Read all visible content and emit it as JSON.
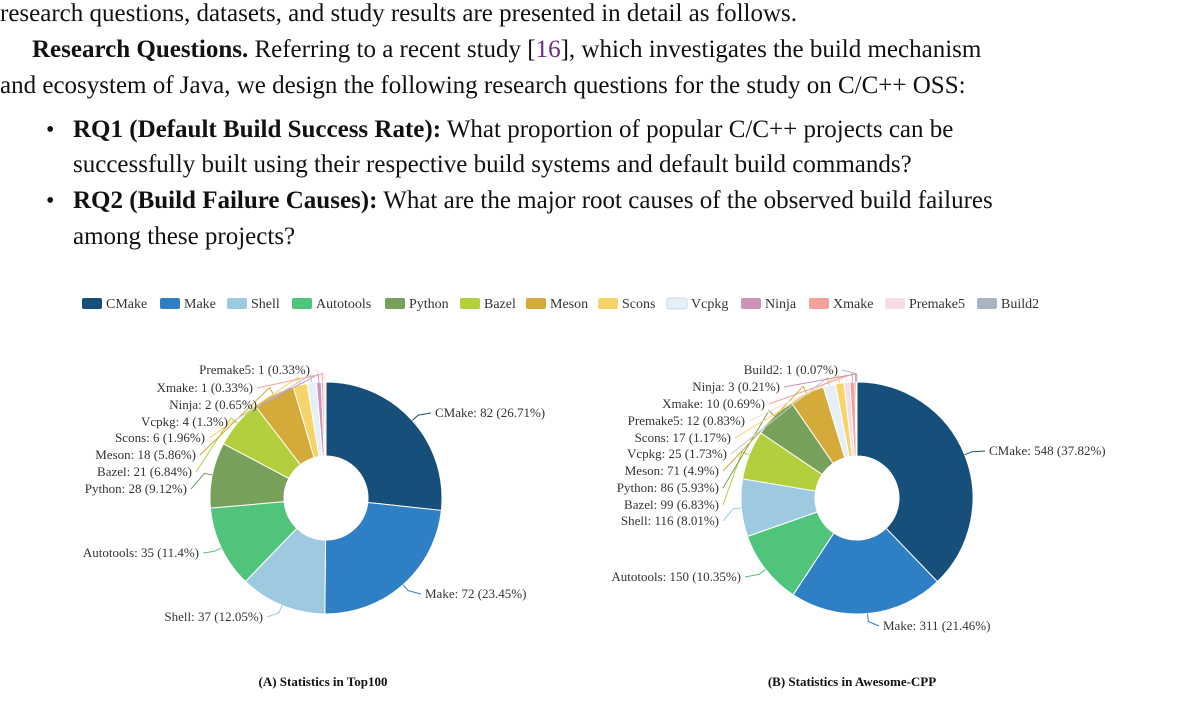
{
  "text": {
    "line1": "research questions, datasets, and study results are presented in detail as follows.",
    "rq_head": "Research Questions.",
    "rq_text_a": " Referring to a recent study [",
    "rq_cite": "16",
    "rq_text_b": "], which investigates the build mechanism",
    "rq_line2": "and ecosystem of Java, we design the following research questions for the study on C/C++ OSS:",
    "rq1_head": "RQ1 (Default Build Success Rate):",
    "rq1_text": " What proportion of popular C/C++ projects can be",
    "rq1_line2": "successfully built using their respective build systems and default build commands?",
    "rq2_head": "RQ2 (Build Failure Causes):",
    "rq2_text": " What are the major root causes of the observed build failures",
    "rq2_line2": "among these projects?"
  },
  "legend": [
    {
      "name": "CMake",
      "color": "#154f7a"
    },
    {
      "name": "Make",
      "color": "#2f7fc4"
    },
    {
      "name": "Shell",
      "color": "#9ecae1"
    },
    {
      "name": "Autotools",
      "color": "#4fc47a"
    },
    {
      "name": "Python",
      "color": "#77a05a"
    },
    {
      "name": "Bazel",
      "color": "#b3cf3e"
    },
    {
      "name": "Meson",
      "color": "#d4aa3a"
    },
    {
      "name": "Scons",
      "color": "#f5d46a"
    },
    {
      "name": "Vcpkg",
      "color": "#e6eef6"
    },
    {
      "name": "Ninja",
      "color": "#c994b8"
    },
    {
      "name": "Xmake",
      "color": "#f4a19a"
    },
    {
      "name": "Premake5",
      "color": "#f6dde2"
    },
    {
      "name": "Build2",
      "color": "#a9b4c2"
    }
  ],
  "chart_data": [
    {
      "type": "pie",
      "title": "(A) Statistics in Top100",
      "slices": [
        {
          "name": "CMake",
          "value": 82,
          "pct": "26.71%",
          "label": "CMake: 82 (26.71%)"
        },
        {
          "name": "Make",
          "value": 72,
          "pct": "23.45%",
          "label": "Make: 72 (23.45%)"
        },
        {
          "name": "Shell",
          "value": 37,
          "pct": "12.05%",
          "label": "Shell: 37 (12.05%)"
        },
        {
          "name": "Autotools",
          "value": 35,
          "pct": "11.4%",
          "label": "Autotools: 35 (11.4%)"
        },
        {
          "name": "Python",
          "value": 28,
          "pct": "9.12%",
          "label": "Python: 28 (9.12%)"
        },
        {
          "name": "Bazel",
          "value": 21,
          "pct": "6.84%",
          "label": "Bazel: 21 (6.84%)"
        },
        {
          "name": "Meson",
          "value": 18,
          "pct": "5.86%",
          "label": "Meson: 18 (5.86%)"
        },
        {
          "name": "Scons",
          "value": 6,
          "pct": "1.96%",
          "label": "Scons: 6 (1.96%)"
        },
        {
          "name": "Vcpkg",
          "value": 4,
          "pct": "1.3%",
          "label": "Vcpkg: 4 (1.3%)"
        },
        {
          "name": "Ninja",
          "value": 2,
          "pct": "0.65%",
          "label": "Ninja: 2 (0.65%)"
        },
        {
          "name": "Xmake",
          "value": 1,
          "pct": "0.33%",
          "label": "Xmake: 1 (0.33%)"
        },
        {
          "name": "Premake5",
          "value": 1,
          "pct": "0.33%",
          "label": "Premake5: 1 (0.33%)"
        }
      ]
    },
    {
      "type": "pie",
      "title": "(B) Statistics in Awesome-CPP",
      "slices": [
        {
          "name": "CMake",
          "value": 548,
          "pct": "37.82%",
          "label": "CMake: 548 (37.82%)"
        },
        {
          "name": "Make",
          "value": 311,
          "pct": "21.46%",
          "label": "Make: 311 (21.46%)"
        },
        {
          "name": "Autotools",
          "value": 150,
          "pct": "10.35%",
          "label": "Autotools: 150 (10.35%)"
        },
        {
          "name": "Shell",
          "value": 116,
          "pct": "8.01%",
          "label": "Shell: 116 (8.01%)"
        },
        {
          "name": "Bazel",
          "value": 99,
          "pct": "6.83%",
          "label": "Bazel: 99 (6.83%)"
        },
        {
          "name": "Python",
          "value": 86,
          "pct": "5.93%",
          "label": "Python: 86 (5.93%)"
        },
        {
          "name": "Meson",
          "value": 71,
          "pct": "4.9%",
          "label": "Meson: 71 (4.9%)"
        },
        {
          "name": "Vcpkg",
          "value": 25,
          "pct": "1.73%",
          "label": "Vcpkg: 25 (1.73%)"
        },
        {
          "name": "Scons",
          "value": 17,
          "pct": "1.17%",
          "label": "Scons: 17 (1.17%)"
        },
        {
          "name": "Premake5",
          "value": 12,
          "pct": "0.83%",
          "label": "Premake5: 12 (0.83%)"
        },
        {
          "name": "Xmake",
          "value": 10,
          "pct": "0.69%",
          "label": "Xmake: 10 (0.69%)"
        },
        {
          "name": "Ninja",
          "value": 3,
          "pct": "0.21%",
          "label": "Ninja: 3 (0.21%)"
        },
        {
          "name": "Build2",
          "value": 1,
          "pct": "0.07%",
          "label": "Build2: 1 (0.07%)"
        }
      ]
    }
  ]
}
